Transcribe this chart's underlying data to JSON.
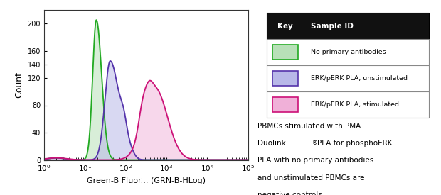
{
  "xlabel": "Green-B Fluor... (GRN-B-HLog)",
  "ylabel": "Count",
  "ylim": [
    0,
    220
  ],
  "yticks": [
    0,
    40,
    80,
    120,
    140,
    160,
    200
  ],
  "green_color_fill": "#b8e0b8",
  "green_color_edge": "#22aa22",
  "purple_color_fill": "#b8b8e8",
  "purple_color_edge": "#5533aa",
  "pink_color_fill": "#f0b0d8",
  "pink_color_edge": "#cc1177",
  "legend_label1": "No primary antibodies",
  "legend_label2": "ERK/pERK PLA, unstimulated",
  "legend_label3": "ERK/pERK PLA, stimulated",
  "annotation_line1": "PBMCs stimulated with PMA.",
  "annotation_line2": "Duolink",
  "annotation_line2b": " PLA for phosphoERK.",
  "annotation_line3": "PLA with no primary antibodies",
  "annotation_line4": "and unstimulated PBMCs are",
  "annotation_line5": "negative controls.",
  "baseline_color": "#5533aa",
  "table_header_bg": "#111111",
  "table_header_fg": "#ffffff"
}
